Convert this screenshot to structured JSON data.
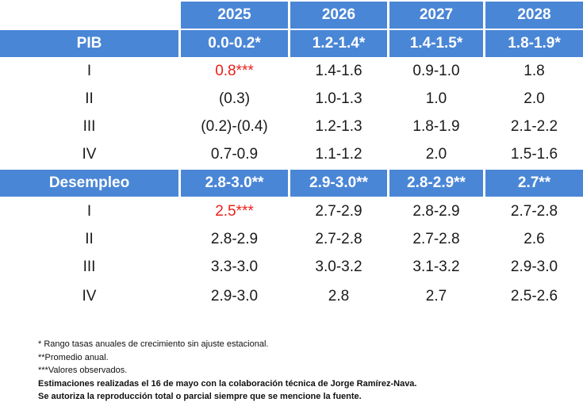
{
  "header": {
    "years": [
      "2025",
      "2026",
      "2027",
      "2028"
    ]
  },
  "pib": {
    "label": "PIB",
    "annual": [
      "0.0-0.2*",
      "1.2-1.4*",
      "1.4-1.5*",
      "1.8-1.9*"
    ],
    "quarters": [
      {
        "q": "I",
        "values": [
          "0.8***",
          "1.4-1.6",
          "0.9-1.0",
          "1.8"
        ]
      },
      {
        "q": "II",
        "values": [
          "(0.3)",
          "1.0-1.3",
          "1.0",
          "2.0"
        ]
      },
      {
        "q": "III",
        "values": [
          "(0.2)-(0.4)",
          "1.2-1.3",
          "1.8-1.9",
          "2.1-2.2"
        ]
      },
      {
        "q": "IV",
        "values": [
          "0.7-0.9",
          "1.1-1.2",
          "2.0",
          "1.5-1.6"
        ]
      }
    ]
  },
  "desempleo": {
    "label": "Desempleo",
    "annual": [
      "2.8-3.0**",
      "2.9-3.0**",
      "2.8-2.9**",
      "2.7**"
    ],
    "quarters": [
      {
        "q": "I",
        "values": [
          "2.5***",
          "2.7-2.9",
          "2.8-2.9",
          "2.7-2.8"
        ]
      },
      {
        "q": "II",
        "values": [
          "2.8-2.9",
          "2.7-2.8",
          "2.7-2.8",
          "2.6"
        ]
      },
      {
        "q": "III",
        "values": [
          "3.3-3.0",
          "3.0-3.2",
          "3.1-3.2",
          "2.9-3.0"
        ]
      },
      {
        "q": "IV",
        "values": [
          "2.9-3.0",
          "2.8",
          "2.7",
          "2.5-2.6"
        ]
      }
    ]
  },
  "colors": {
    "header_bg": "#4a86d6",
    "observed": "#e8211a"
  },
  "notes": {
    "n1": "* Rango tasas anuales de crecimiento sin ajuste estacional.",
    "n2": "**Promedio anual.",
    "n3": "***Valores observados.",
    "n4": "Estimaciones realizadas el 16 de mayo con la colaboración técnica de Jorge Ramírez-Nava.",
    "n5": "Se autoriza la reproducción total o parcial siempre que se mencione la fuente."
  }
}
